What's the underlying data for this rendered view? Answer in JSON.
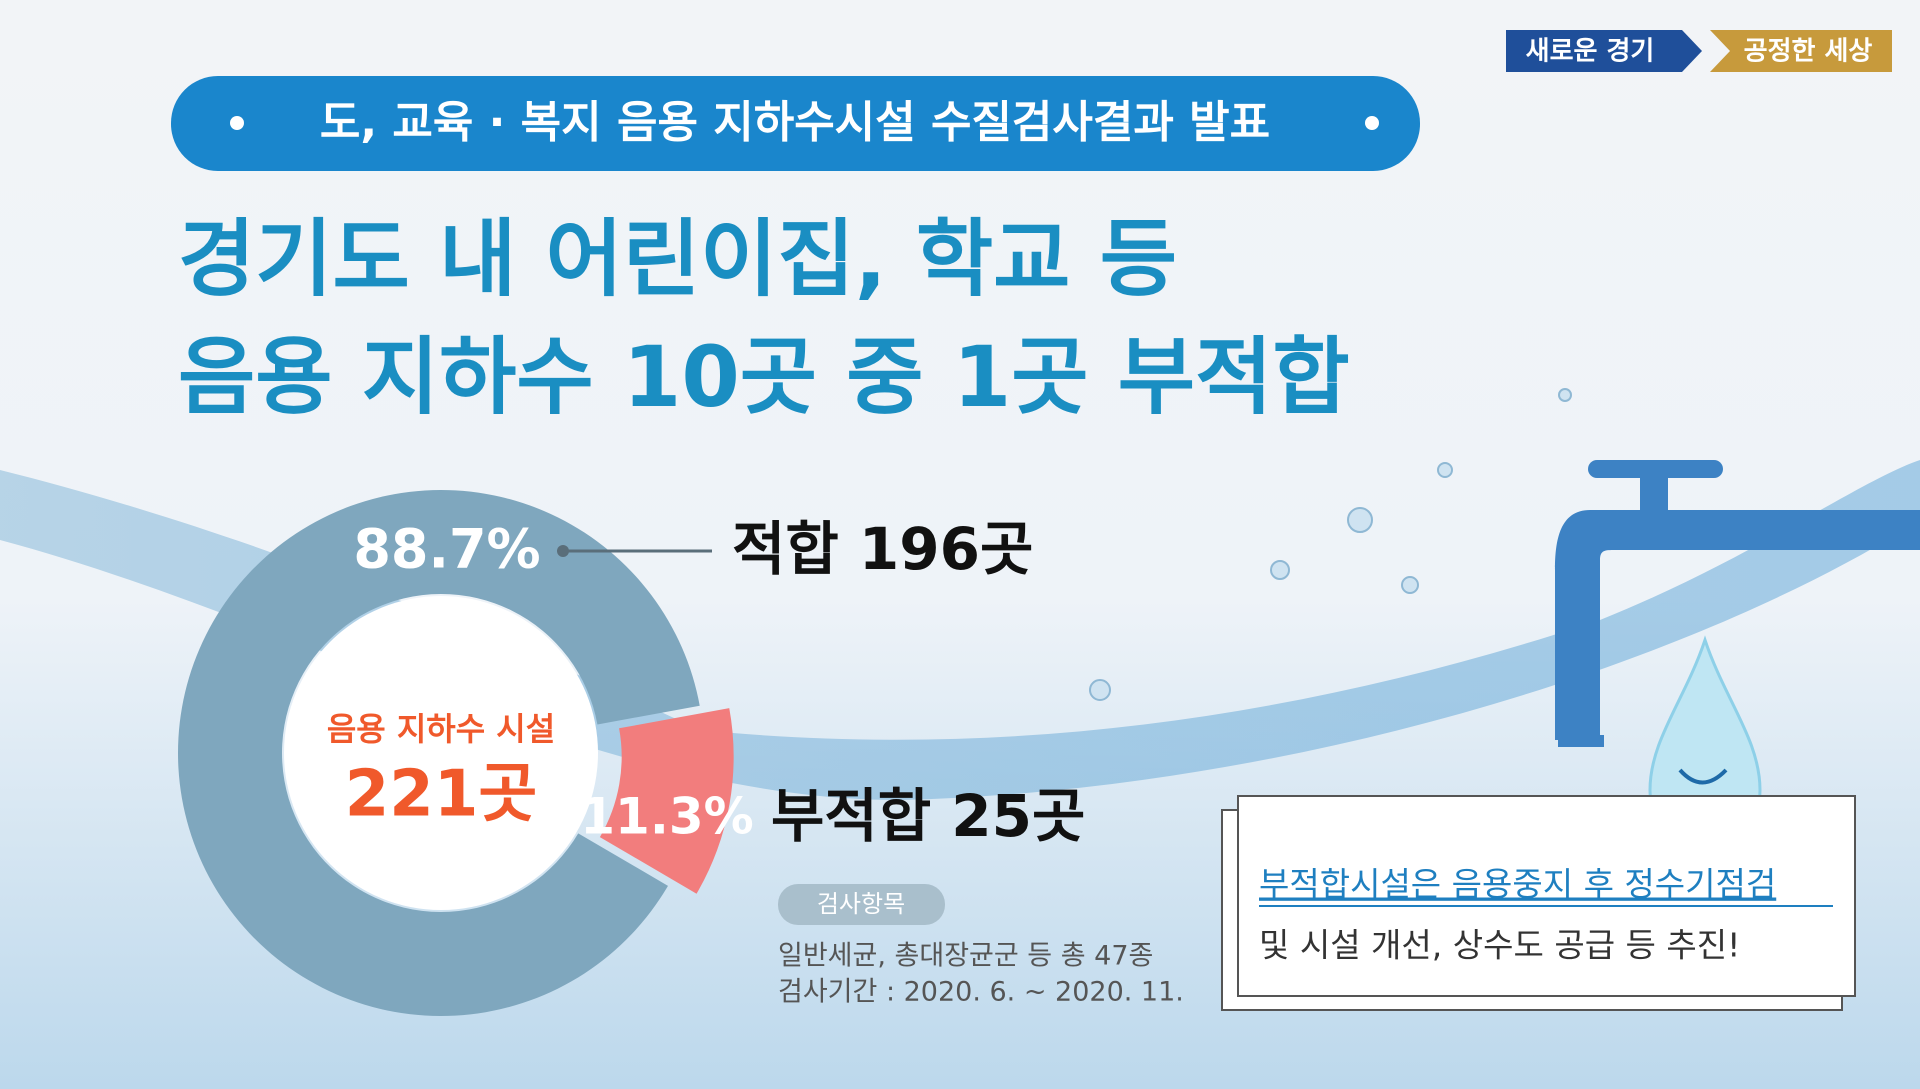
{
  "badge": {
    "left": "새로운 경기",
    "right": "공정한 세상"
  },
  "header": {
    "subtitle": "도, 교육 · 복지 음용 지하수시설 수질검사결과 발표",
    "title_lines": [
      "경기도 내 어린이집, 학교 등",
      "음용 지하수 10곳 중 1곳 부적합"
    ]
  },
  "chart_data": {
    "type": "pie",
    "donut": true,
    "center_label": [
      "음용 지하수 시설",
      "221곳"
    ],
    "categories": [
      "적합 196곳",
      "부적합 25곳"
    ],
    "values": [
      88.7,
      11.3
    ],
    "value_labels": [
      "88.7%",
      "11.3%"
    ],
    "colors": [
      "#7fa7be",
      "#f27d7d"
    ]
  },
  "inspection": {
    "tag": "검사항목",
    "lines": [
      "일반세균, 총대장균군 등 총 47종",
      "검사기간 : 2020. 6. ~ 2020. 11."
    ]
  },
  "note": {
    "lines": [
      "부적합시설은 음용중지 후 정수기점검",
      "및 시설 개선, 상수도 공급 등 추진!"
    ]
  }
}
